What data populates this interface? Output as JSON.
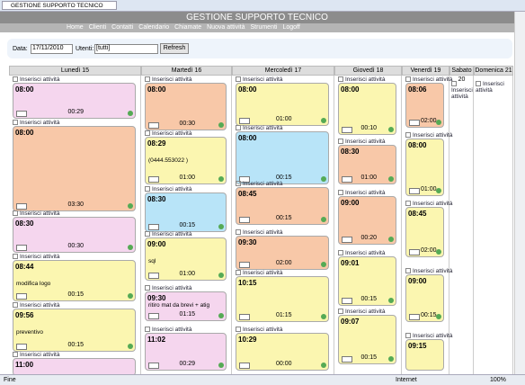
{
  "window": {
    "tab": "GESTIONE SUPPORTO TECNICO"
  },
  "header": {
    "title": "GESTIONE SUPPORTO TECNICO",
    "nav": [
      "Home",
      "Clienti",
      "Contatti",
      "Calendario",
      "Chiamate",
      "Nuova attività",
      "Strumenti",
      "Logoff"
    ]
  },
  "filter": {
    "date_label": "Data:",
    "date": "17/11/2010",
    "users_label": "Utenti:",
    "users": "[tutti]",
    "button": "Refresh"
  },
  "calendar": {
    "insert_label": "Inserisci attività",
    "days": [
      {
        "label": "Lunedì 15",
        "events": [
          {
            "time": "08:00",
            "duration": "00:29",
            "color": "#f5d6ee"
          },
          {
            "time": "08:00",
            "duration": "03:30",
            "color": "#f8c8a8"
          },
          {
            "time": "08:30",
            "duration": "00:30",
            "color": "#f5d6ee"
          },
          {
            "time": "08:44",
            "text": "modifica logo",
            "duration": "00:15",
            "color": "#fbf6b0"
          },
          {
            "time": "09:56",
            "text": "preventivo",
            "duration": "00:15",
            "color": "#fbf6b0"
          },
          {
            "time": "11:00",
            "color": "#f5d6ee"
          }
        ]
      },
      {
        "label": "Martedì 16",
        "events": [
          {
            "time": "08:00",
            "duration": "00:30",
            "color": "#f8c8a8"
          },
          {
            "time": "08:29",
            "text": "(0444.553022 )",
            "duration": "01:00",
            "color": "#fbf6b0"
          },
          {
            "time": "08:30",
            "duration": "00:15",
            "color": "#b8e4f8"
          },
          {
            "time": "09:00",
            "text": "sql",
            "duration": "01:00",
            "color": "#fbf6b0"
          },
          {
            "time": "09:30",
            "text": "ritiro mat da brevi + atig",
            "duration": "01:15",
            "color": "#f5d6ee"
          },
          {
            "time": "11:02",
            "duration": "00:29",
            "color": "#f5d6ee"
          }
        ]
      },
      {
        "label": "Mercoledì 17",
        "events": [
          {
            "time": "08:00",
            "duration": "01:00",
            "color": "#fbf6b0"
          },
          {
            "time": "08:00",
            "duration": "00:15",
            "color": "#b8e4f8"
          },
          {
            "time": "08:45",
            "duration": "00:15",
            "color": "#f8c8a8"
          },
          {
            "time": "09:30",
            "duration": "02:00",
            "color": "#f8c8a8"
          },
          {
            "time": "10:15",
            "duration": "01:15",
            "color": "#fbf6b0"
          },
          {
            "time": "10:29",
            "duration": "00:00",
            "color": "#fbf6b0"
          }
        ]
      },
      {
        "label": "Giovedì 18",
        "events": [
          {
            "time": "08:00",
            "duration": "00:10",
            "color": "#fbf6b0"
          },
          {
            "time": "08:30",
            "duration": "01:00",
            "color": "#f8c8a8"
          },
          {
            "time": "09:00",
            "duration": "00:20",
            "color": "#f8c8a8"
          },
          {
            "time": "09:01",
            "duration": "00:15",
            "color": "#fbf6b0"
          },
          {
            "time": "09:07",
            "duration": "00:15",
            "color": "#fbf6b0"
          }
        ]
      },
      {
        "label": "Venerdì 19",
        "events": [
          {
            "time": "08:06",
            "duration": "02:00",
            "color": "#f8c8a8"
          },
          {
            "time": "08:00",
            "duration": "01:00",
            "color": "#fbf6b0"
          },
          {
            "time": "08:45",
            "duration": "02:00",
            "color": "#fbf6b0"
          },
          {
            "time": "09:00",
            "duration": "00:15",
            "color": "#fbf6b0"
          },
          {
            "time": "09:15",
            "color": "#fbf6b0"
          }
        ]
      },
      {
        "label": "Sabato 20",
        "events": []
      },
      {
        "label": "Domenica 21",
        "events": []
      }
    ]
  },
  "status": {
    "left": "Fine",
    "zone": "Internet",
    "zoom": "100%"
  }
}
